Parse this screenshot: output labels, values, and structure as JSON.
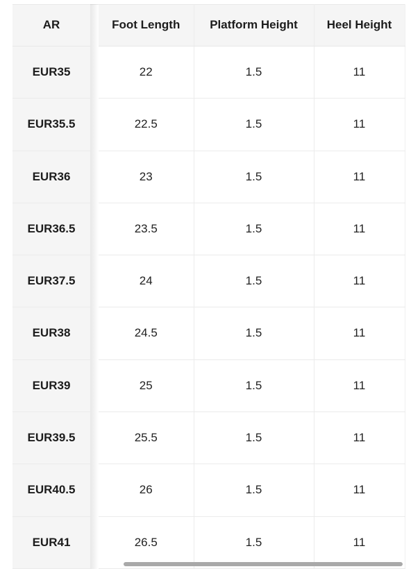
{
  "table": {
    "columns": [
      {
        "key": "ar",
        "label": "AR"
      },
      {
        "key": "foot_length",
        "label": "Foot Length"
      },
      {
        "key": "platform_height",
        "label": "Platform Height"
      },
      {
        "key": "heel_height",
        "label": "Heel Height"
      }
    ],
    "rows": [
      {
        "ar": "EUR35",
        "foot_length": "22",
        "platform_height": "1.5",
        "heel_height": "11"
      },
      {
        "ar": "EUR35.5",
        "foot_length": "22.5",
        "platform_height": "1.5",
        "heel_height": "11"
      },
      {
        "ar": "EUR36",
        "foot_length": "23",
        "platform_height": "1.5",
        "heel_height": "11"
      },
      {
        "ar": "EUR36.5",
        "foot_length": "23.5",
        "platform_height": "1.5",
        "heel_height": "11"
      },
      {
        "ar": "EUR37.5",
        "foot_length": "24",
        "platform_height": "1.5",
        "heel_height": "11"
      },
      {
        "ar": "EUR38",
        "foot_length": "24.5",
        "platform_height": "1.5",
        "heel_height": "11"
      },
      {
        "ar": "EUR39",
        "foot_length": "25",
        "platform_height": "1.5",
        "heel_height": "11"
      },
      {
        "ar": "EUR39.5",
        "foot_length": "25.5",
        "platform_height": "1.5",
        "heel_height": "11"
      },
      {
        "ar": "EUR40.5",
        "foot_length": "26",
        "platform_height": "1.5",
        "heel_height": "11"
      },
      {
        "ar": "EUR41",
        "foot_length": "26.5",
        "platform_height": "1.5",
        "heel_height": "11"
      }
    ]
  },
  "scrollbar": {
    "orientation": "horizontal"
  },
  "colors": {
    "page_bg": "#ffffff",
    "header_bg": "#f5f5f5",
    "header_text": "#1c1c1c",
    "cell_text": "#222222",
    "border": "#e8e8e8",
    "row_border": "#ebebeb",
    "col_border": "#ececec",
    "edge_border": "#efefef",
    "scrollbar_thumb": "#a9a9a9"
  }
}
